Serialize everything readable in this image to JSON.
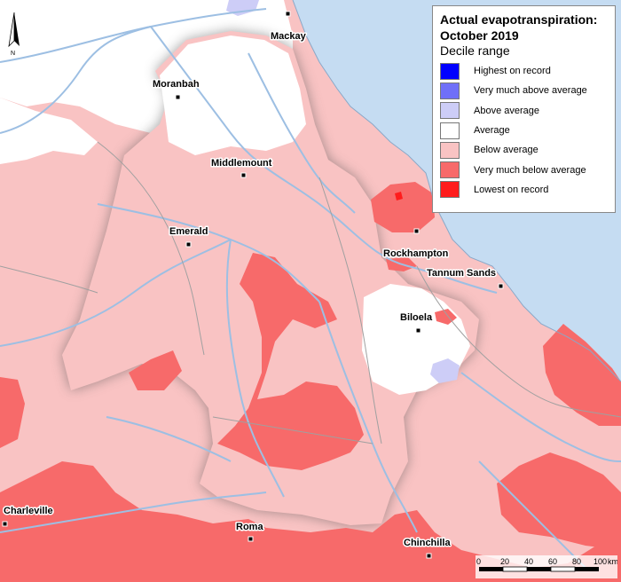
{
  "legend": {
    "title_line1": "Actual evapotranspiration:",
    "title_line2": "October 2019",
    "subtitle": "Decile range",
    "items": [
      {
        "label": "Highest on record",
        "color": "#0000ff"
      },
      {
        "label": "Very much above average",
        "color": "#6f6ff8"
      },
      {
        "label": "Above average",
        "color": "#cdcdf7"
      },
      {
        "label": "Average",
        "color": "#ffffff"
      },
      {
        "label": "Below average",
        "color": "#f9c3c3"
      },
      {
        "label": "Very much below average",
        "color": "#f76a6a"
      },
      {
        "label": "Lowest on record",
        "color": "#ff1c1c"
      }
    ]
  },
  "places": [
    {
      "name": "Mackay"
    },
    {
      "name": "Moranbah"
    },
    {
      "name": "Middlemount"
    },
    {
      "name": "Emerald"
    },
    {
      "name": "Rockhampton"
    },
    {
      "name": "Tannum Sands"
    },
    {
      "name": "Biloela"
    },
    {
      "name": "Charleville"
    },
    {
      "name": "Roma"
    },
    {
      "name": "Chinchilla"
    }
  ],
  "north_arrow": {
    "label": "N"
  },
  "scale_bar": {
    "ticks": [
      "0",
      "20",
      "40",
      "60",
      "80",
      "100"
    ],
    "unit": "km"
  },
  "colors": {
    "ocean": "#c5dcf2",
    "river": "#9dbfe3",
    "boundary": "#a0a0a0"
  }
}
